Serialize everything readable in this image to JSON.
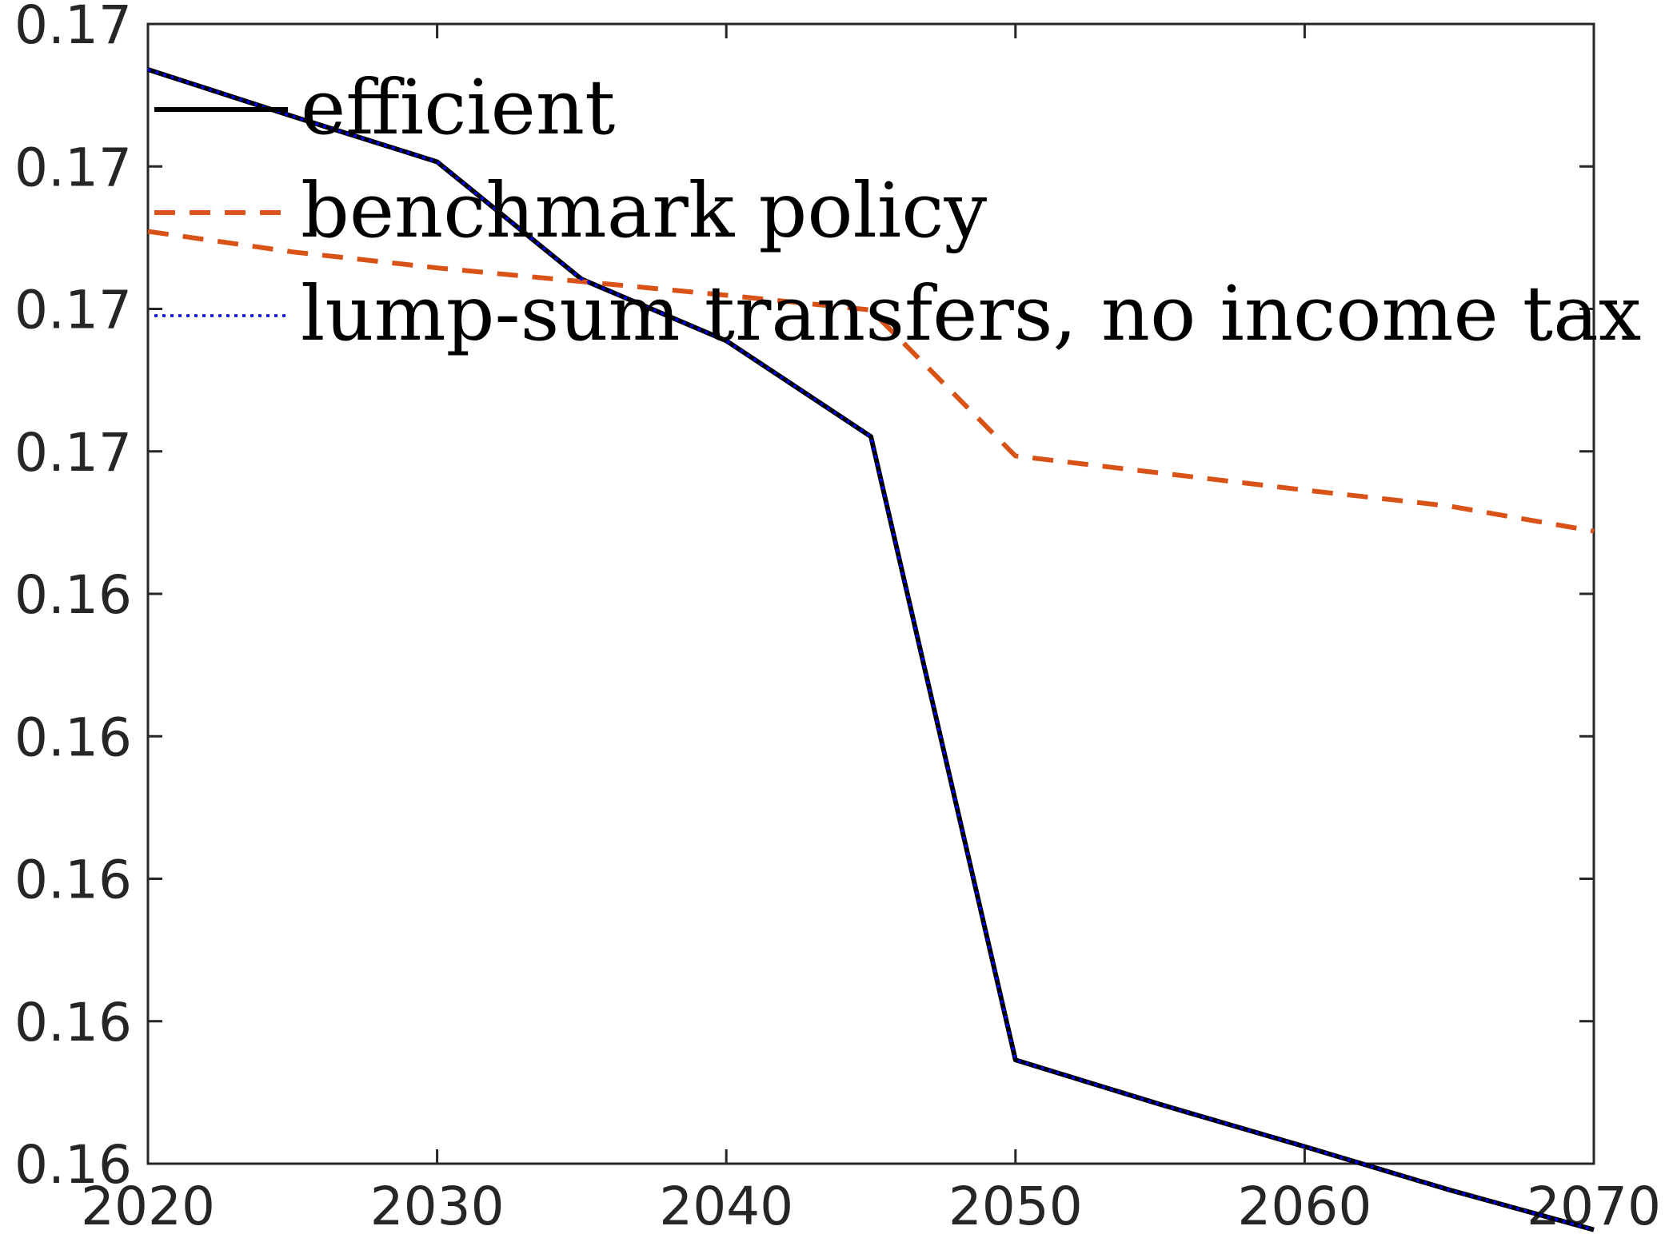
{
  "chart_data": {
    "type": "line",
    "title": "",
    "xlabel": "",
    "ylabel": "",
    "xlim": [
      2020,
      2070
    ],
    "ylim": [
      0.16,
      0.17
    ],
    "x_ticks": [
      2020,
      2030,
      2040,
      2050,
      2060,
      2070
    ],
    "x_tick_labels": [
      "2020",
      "2030",
      "2040",
      "2050",
      "2060",
      "2070"
    ],
    "y_ticks": [
      0.16,
      0.16125,
      0.1625,
      0.16375,
      0.165,
      0.16625,
      0.1675,
      0.16875,
      0.17
    ],
    "y_tick_labels": [
      "0.16",
      "0.16",
      "0.16",
      "0.16",
      "0.16",
      "0.17",
      "0.17",
      "0.17",
      "0.17"
    ],
    "grid": false,
    "legend_position": "top-left",
    "series": [
      {
        "name": "efficient",
        "color": "#000000",
        "style": "solid",
        "x": [
          2020,
          2025,
          2030,
          2035,
          2040,
          2045,
          2050,
          2055,
          2060,
          2065,
          2070
        ],
        "y": [
          0.1696,
          0.16919,
          0.16879,
          0.16776,
          0.16722,
          0.16638,
          0.16091,
          0.16052,
          0.16015,
          0.15977,
          0.15942
        ]
      },
      {
        "name": "benchmark policy",
        "color": "#D95319",
        "style": "dashed",
        "x": [
          2020,
          2025,
          2030,
          2035,
          2040,
          2045,
          2050,
          2055,
          2060,
          2065,
          2070
        ],
        "y": [
          0.16818,
          0.168,
          0.16786,
          0.16774,
          0.16762,
          0.16749,
          0.16621,
          0.16606,
          0.16591,
          0.16577,
          0.16555
        ]
      },
      {
        "name": "lump-sum transfers, no income tax",
        "color": "#0000FF",
        "style": "dotted",
        "x": [
          2020,
          2025,
          2030,
          2035,
          2040,
          2045,
          2050,
          2055,
          2060,
          2065,
          2070
        ],
        "y": [
          0.1696,
          0.16919,
          0.16879,
          0.16776,
          0.16722,
          0.16638,
          0.16091,
          0.16052,
          0.16015,
          0.15977,
          0.15942
        ]
      }
    ]
  }
}
